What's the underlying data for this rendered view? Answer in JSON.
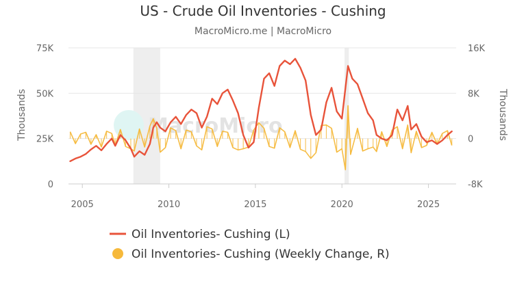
{
  "chart_data": {
    "type": "line",
    "title": "US - Crude Oil Inventories - Cushing",
    "subtitle": "MacroMicro.me | MacroMicro",
    "watermark": "MacroMicro",
    "x_axis": {
      "min": 2004.2,
      "max": 2026.6,
      "ticks": [
        "2005",
        "2010",
        "2015",
        "2020",
        "2025"
      ],
      "tick_values": [
        2005,
        2010,
        2015,
        2020,
        2025
      ]
    },
    "y_left": {
      "label": "Thousands",
      "min": 0,
      "max": 75000,
      "ticks": [
        "0",
        "25K",
        "50K",
        "75K"
      ],
      "tick_values": [
        0,
        25000,
        50000,
        75000
      ]
    },
    "y_right": {
      "label": "Thousands",
      "min": -8000,
      "max": 16000,
      "ticks": [
        "-8K",
        "0",
        "8K",
        "16K"
      ],
      "tick_values": [
        -8000,
        0,
        8000,
        16000
      ]
    },
    "shaded_periods": [
      [
        2007.95,
        2009.5
      ],
      [
        2020.15,
        2020.4
      ]
    ],
    "grid": true,
    "legend_position": "bottom-center",
    "series": [
      {
        "name": "Oil Inventories- Cushing (L)",
        "axis": "left",
        "kind": "line",
        "color": "#e8533a",
        "points": [
          [
            2004.3,
            12500
          ],
          [
            2004.6,
            14000
          ],
          [
            2004.9,
            15000
          ],
          [
            2005.2,
            16500
          ],
          [
            2005.5,
            19000
          ],
          [
            2005.8,
            21000
          ],
          [
            2006.1,
            18500
          ],
          [
            2006.4,
            22000
          ],
          [
            2006.7,
            25000
          ],
          [
            2006.9,
            21000
          ],
          [
            2007.2,
            27000
          ],
          [
            2007.5,
            24000
          ],
          [
            2007.8,
            19500
          ],
          [
            2008.0,
            15000
          ],
          [
            2008.3,
            18000
          ],
          [
            2008.6,
            16000
          ],
          [
            2008.9,
            22000
          ],
          [
            2009.1,
            31000
          ],
          [
            2009.3,
            34000
          ],
          [
            2009.5,
            31000
          ],
          [
            2009.8,
            29000
          ],
          [
            2010.1,
            34000
          ],
          [
            2010.4,
            37000
          ],
          [
            2010.7,
            33000
          ],
          [
            2011.0,
            38000
          ],
          [
            2011.3,
            41000
          ],
          [
            2011.6,
            39000
          ],
          [
            2011.9,
            31000
          ],
          [
            2012.2,
            37000
          ],
          [
            2012.5,
            47000
          ],
          [
            2012.8,
            44000
          ],
          [
            2013.1,
            50000
          ],
          [
            2013.4,
            52000
          ],
          [
            2013.7,
            46000
          ],
          [
            2014.0,
            39000
          ],
          [
            2014.3,
            27000
          ],
          [
            2014.6,
            20000
          ],
          [
            2014.9,
            23000
          ],
          [
            2015.2,
            42000
          ],
          [
            2015.5,
            58000
          ],
          [
            2015.8,
            61000
          ],
          [
            2016.1,
            54000
          ],
          [
            2016.4,
            65000
          ],
          [
            2016.7,
            68000
          ],
          [
            2017.0,
            66000
          ],
          [
            2017.3,
            69000
          ],
          [
            2017.6,
            64000
          ],
          [
            2017.9,
            57000
          ],
          [
            2018.2,
            38000
          ],
          [
            2018.5,
            27000
          ],
          [
            2018.8,
            30000
          ],
          [
            2019.1,
            45000
          ],
          [
            2019.4,
            53000
          ],
          [
            2019.7,
            40000
          ],
          [
            2020.0,
            36000
          ],
          [
            2020.35,
            65000
          ],
          [
            2020.6,
            58000
          ],
          [
            2020.9,
            55000
          ],
          [
            2021.2,
            47000
          ],
          [
            2021.5,
            39000
          ],
          [
            2021.8,
            35000
          ],
          [
            2022.0,
            27000
          ],
          [
            2022.3,
            25000
          ],
          [
            2022.6,
            24000
          ],
          [
            2022.9,
            27000
          ],
          [
            2023.2,
            41000
          ],
          [
            2023.5,
            35000
          ],
          [
            2023.8,
            43000
          ],
          [
            2024.0,
            30000
          ],
          [
            2024.3,
            33000
          ],
          [
            2024.6,
            26000
          ],
          [
            2024.9,
            23000
          ],
          [
            2025.2,
            24000
          ],
          [
            2025.5,
            22000
          ],
          [
            2025.8,
            24000
          ],
          [
            2026.1,
            27000
          ],
          [
            2026.35,
            29000
          ]
        ]
      },
      {
        "name": "Oil Inventories- Cushing (Weekly Change, R)",
        "axis": "right",
        "kind": "area",
        "color": "#f6b93b",
        "points": [
          [
            2004.3,
            1200
          ],
          [
            2004.6,
            -900
          ],
          [
            2004.9,
            800
          ],
          [
            2005.2,
            1100
          ],
          [
            2005.5,
            -1000
          ],
          [
            2005.8,
            700
          ],
          [
            2006.1,
            -1500
          ],
          [
            2006.4,
            1300
          ],
          [
            2006.7,
            900
          ],
          [
            2006.9,
            -1200
          ],
          [
            2007.2,
            1600
          ],
          [
            2007.5,
            -1400
          ],
          [
            2007.8,
            -1800
          ],
          [
            2008.0,
            -2200
          ],
          [
            2008.3,
            1700
          ],
          [
            2008.6,
            -1500
          ],
          [
            2008.9,
            2200
          ],
          [
            2009.1,
            3500
          ],
          [
            2009.3,
            1800
          ],
          [
            2009.5,
            -2400
          ],
          [
            2009.8,
            -1600
          ],
          [
            2010.1,
            1900
          ],
          [
            2010.4,
            1400
          ],
          [
            2010.7,
            -1800
          ],
          [
            2011.0,
            1500
          ],
          [
            2011.3,
            1200
          ],
          [
            2011.6,
            -1300
          ],
          [
            2011.9,
            -2000
          ],
          [
            2012.2,
            2100
          ],
          [
            2012.5,
            1700
          ],
          [
            2012.8,
            -1400
          ],
          [
            2013.1,
            1300
          ],
          [
            2013.4,
            1100
          ],
          [
            2013.7,
            -1600
          ],
          [
            2014.0,
            -2000
          ],
          [
            2014.3,
            -1800
          ],
          [
            2014.6,
            -1500
          ],
          [
            2014.9,
            1500
          ],
          [
            2015.2,
            2800
          ],
          [
            2015.5,
            1800
          ],
          [
            2015.8,
            -1400
          ],
          [
            2016.1,
            -1700
          ],
          [
            2016.4,
            1900
          ],
          [
            2016.7,
            1200
          ],
          [
            2017.0,
            -1600
          ],
          [
            2017.3,
            1400
          ],
          [
            2017.6,
            -1900
          ],
          [
            2017.9,
            -2300
          ],
          [
            2018.2,
            -3500
          ],
          [
            2018.5,
            -2500
          ],
          [
            2018.8,
            2300
          ],
          [
            2019.1,
            2400
          ],
          [
            2019.4,
            1800
          ],
          [
            2019.7,
            -2400
          ],
          [
            2020.0,
            -1800
          ],
          [
            2020.2,
            -5500
          ],
          [
            2020.35,
            5800
          ],
          [
            2020.5,
            -2800
          ],
          [
            2020.9,
            1800
          ],
          [
            2021.2,
            -2200
          ],
          [
            2021.5,
            -1800
          ],
          [
            2021.8,
            -1500
          ],
          [
            2022.0,
            -2300
          ],
          [
            2022.3,
            1200
          ],
          [
            2022.6,
            -1400
          ],
          [
            2022.9,
            1500
          ],
          [
            2023.2,
            2100
          ],
          [
            2023.5,
            -1800
          ],
          [
            2023.8,
            2400
          ],
          [
            2024.0,
            -2500
          ],
          [
            2024.3,
            1300
          ],
          [
            2024.6,
            -1600
          ],
          [
            2024.9,
            -1200
          ],
          [
            2025.2,
            1100
          ],
          [
            2025.5,
            -1000
          ],
          [
            2025.8,
            900
          ],
          [
            2026.1,
            1400
          ],
          [
            2026.35,
            -1200
          ]
        ]
      }
    ]
  }
}
